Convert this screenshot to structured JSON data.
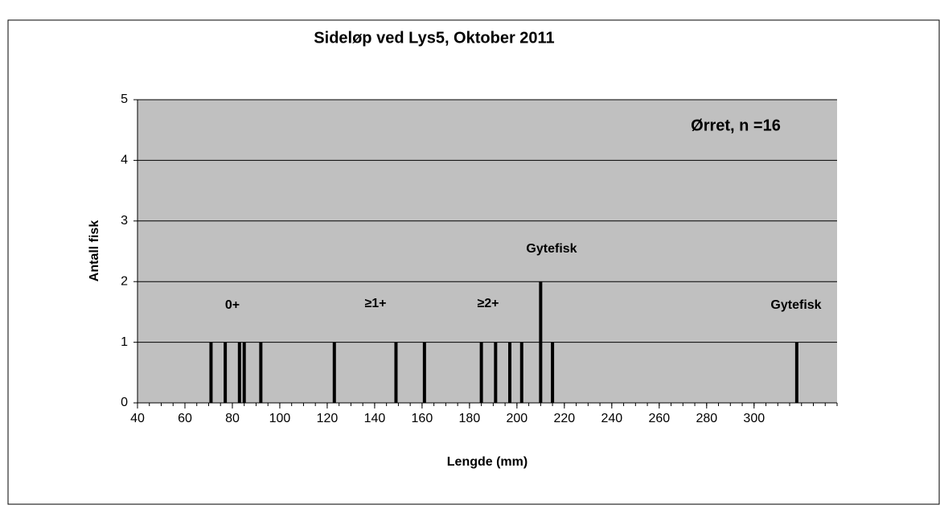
{
  "chart_data": {
    "type": "bar",
    "title": "Sideløp ved Lys5, Oktober 2011",
    "x_label": "Lengde (mm)",
    "y_label": "Antall fisk",
    "legend_text": "Ørret, n =16",
    "x": [
      71,
      77,
      83,
      85,
      92,
      123,
      149,
      161,
      185,
      191,
      197,
      202,
      210,
      215,
      318
    ],
    "values": [
      1,
      1,
      1,
      1,
      1,
      1,
      1,
      1,
      1,
      1,
      1,
      1,
      2,
      1,
      1
    ],
    "color": "#000000",
    "background": "#c0c0c0",
    "xlim": [
      40,
      335
    ],
    "xticks": [
      40,
      60,
      80,
      100,
      120,
      140,
      160,
      180,
      200,
      220,
      240,
      260,
      280,
      300
    ],
    "ylim": [
      0,
      5
    ],
    "yticks": [
      0,
      1,
      2,
      3,
      4,
      5
    ],
    "grid": true,
    "annotations": [
      "0+",
      "≥1+",
      "≥2+",
      "Gytefisk",
      "Gytefisk"
    ]
  }
}
